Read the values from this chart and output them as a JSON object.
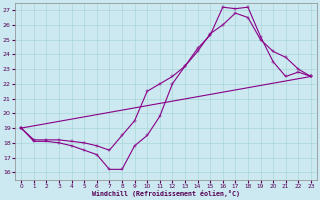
{
  "xlabel": "Windchill (Refroidissement éolien,°C)",
  "bg_color": "#cce8f0",
  "line_color": "#880088",
  "markersize": 2.5,
  "linewidth": 0.8,
  "xlim": [
    -0.5,
    23.5
  ],
  "ylim": [
    15.5,
    27.5
  ],
  "xticks": [
    0,
    1,
    2,
    3,
    4,
    5,
    6,
    7,
    8,
    9,
    10,
    11,
    12,
    13,
    14,
    15,
    16,
    17,
    18,
    19,
    20,
    21,
    22,
    23
  ],
  "yticks": [
    16,
    17,
    18,
    19,
    20,
    21,
    22,
    23,
    24,
    25,
    26,
    27
  ],
  "grid_color": "#aad8d8",
  "series1": [
    [
      0,
      19.0
    ],
    [
      1,
      18.1
    ],
    [
      2,
      18.1
    ],
    [
      3,
      18.0
    ],
    [
      4,
      17.8
    ],
    [
      5,
      17.5
    ],
    [
      6,
      17.2
    ],
    [
      7,
      16.2
    ],
    [
      8,
      16.2
    ],
    [
      9,
      17.8
    ],
    [
      10,
      18.5
    ],
    [
      11,
      19.8
    ],
    [
      12,
      22.0
    ],
    [
      13,
      23.2
    ],
    [
      14,
      24.4
    ],
    [
      15,
      25.3
    ],
    [
      16,
      27.2
    ],
    [
      17,
      27.1
    ],
    [
      18,
      27.2
    ],
    [
      19,
      25.2
    ],
    [
      20,
      23.5
    ],
    [
      21,
      22.5
    ],
    [
      22,
      22.8
    ],
    [
      23,
      22.5
    ]
  ],
  "series2": [
    [
      0,
      19.0
    ],
    [
      1,
      18.2
    ],
    [
      2,
      18.2
    ],
    [
      3,
      18.2
    ],
    [
      4,
      18.1
    ],
    [
      5,
      18.0
    ],
    [
      6,
      17.8
    ],
    [
      7,
      17.5
    ],
    [
      8,
      18.5
    ],
    [
      9,
      19.5
    ],
    [
      10,
      21.5
    ],
    [
      11,
      22.0
    ],
    [
      12,
      22.5
    ],
    [
      13,
      23.2
    ],
    [
      14,
      24.2
    ],
    [
      15,
      25.4
    ],
    [
      16,
      26.0
    ],
    [
      17,
      26.8
    ],
    [
      18,
      26.5
    ],
    [
      19,
      25.0
    ],
    [
      20,
      24.2
    ],
    [
      21,
      23.8
    ],
    [
      22,
      23.0
    ],
    [
      23,
      22.5
    ]
  ],
  "series3": [
    [
      0,
      19.0
    ],
    [
      23,
      22.5
    ]
  ]
}
